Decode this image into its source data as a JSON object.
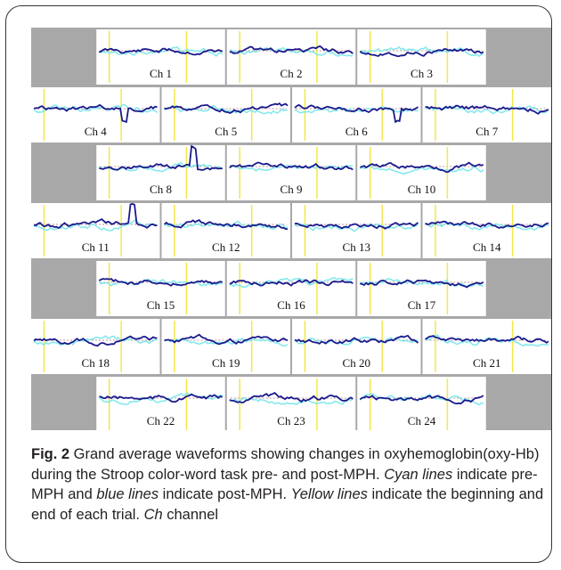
{
  "figure": {
    "channels": [
      "Ch 1",
      "Ch 2",
      "Ch 3",
      "Ch 4",
      "Ch 5",
      "Ch 6",
      "Ch 7",
      "Ch 8",
      "Ch 9",
      "Ch 10",
      "Ch 11",
      "Ch 12",
      "Ch 13",
      "Ch 14",
      "Ch 15",
      "Ch 16",
      "Ch 17",
      "Ch 18",
      "Ch 19",
      "Ch 20",
      "Ch 21",
      "Ch 22",
      "Ch 23",
      "Ch 24"
    ],
    "row_layout": [
      3,
      4,
      3,
      4,
      3,
      4,
      3
    ],
    "colors": {
      "background": "#a8a8a8",
      "panel": "#ffffff",
      "pre_mph": "#7fe8ec",
      "post_mph": "#1a1a8c",
      "trial_marker": "#f2e84a",
      "baseline": "#b0707a"
    }
  },
  "caption": {
    "label": "Fig. 2",
    "t1": "  Grand average waveforms showing changes in oxyhemoglobin(oxy-Hb) during the Stroop color-word task pre- and post-MPH. ",
    "cyan": "Cyan lines",
    "t2": " indicate pre-MPH and ",
    "blue": "blue lines",
    "t3": " indicate post-MPH. ",
    "yellow": "Yellow lines",
    "t4": " indicate the beginning and end of each trial. ",
    "ch": "Ch",
    "t5": " channel"
  }
}
